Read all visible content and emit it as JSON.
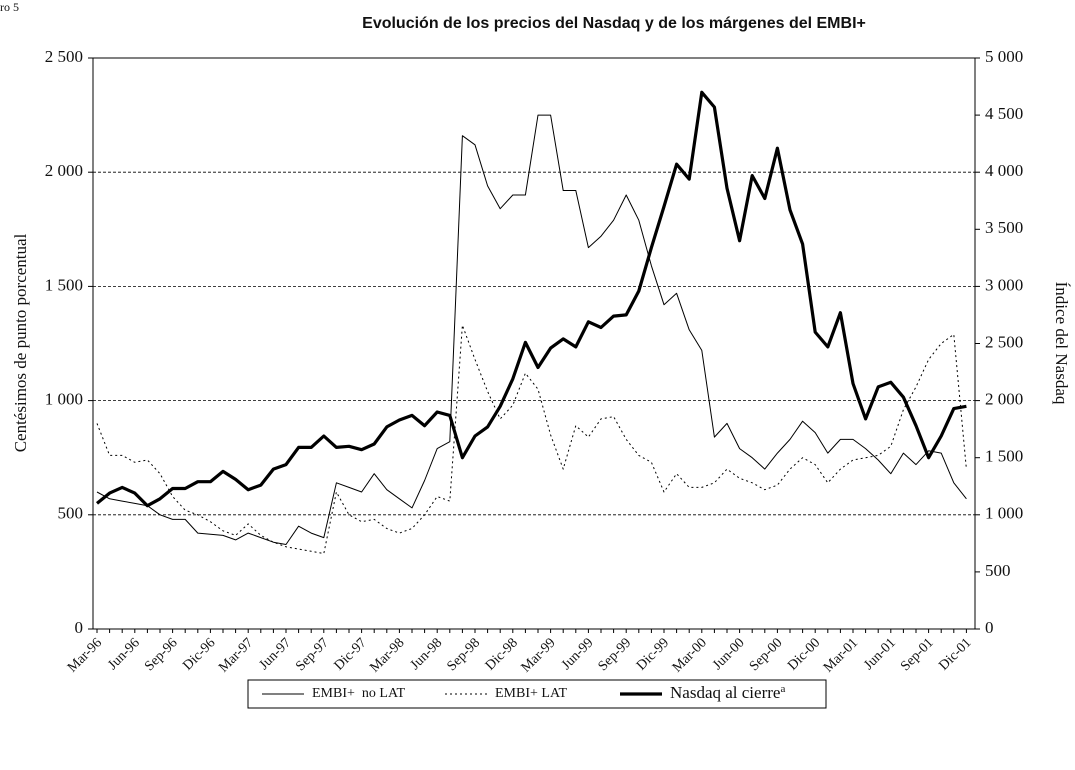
{
  "chart_data": {
    "type": "line",
    "corner_note": "ro 5",
    "title": "Evolución de los precios del Nasdaq y de los márgenes del EMBI+",
    "y_label": "Centésimos de punto porcentual",
    "y2_label": "Índice del Nasdaq",
    "categories": [
      "Mar-96",
      null,
      null,
      "Jun-96",
      null,
      null,
      "Sep-96",
      null,
      null,
      "Dic-96",
      null,
      null,
      "Mar-97",
      null,
      null,
      "Jun-97",
      null,
      null,
      "Sep-97",
      null,
      null,
      "Dic-97",
      null,
      null,
      "Mar-98",
      null,
      null,
      "Jun-98",
      null,
      null,
      "Sep-98",
      null,
      null,
      "Dic-98",
      null,
      null,
      "Mar-99",
      null,
      null,
      "Jun-99",
      null,
      null,
      "Sep-99",
      null,
      null,
      "Dic-99",
      null,
      null,
      "Mar-00",
      null,
      null,
      "Jun-00",
      null,
      null,
      "Sep-00",
      null,
      null,
      "Dic-00",
      null,
      null,
      "Mar-01",
      null,
      null,
      "Jun-01",
      null,
      null,
      "Sep-01",
      null,
      null,
      "Dic-01"
    ],
    "series": [
      {
        "name": "EMBI+  no LAT",
        "color": "#000000",
        "width": 1,
        "dash": "none",
        "axis": "y",
        "values": [
          600,
          570,
          560,
          550,
          540,
          500,
          480,
          480,
          420,
          415,
          410,
          390,
          420,
          400,
          380,
          370,
          450,
          420,
          400,
          640,
          620,
          600,
          680,
          610,
          570,
          530,
          650,
          790,
          820,
          2160,
          2120,
          1940,
          1840,
          1900,
          1900,
          2250,
          2250,
          1920,
          1920,
          1670,
          1720,
          1790,
          1900,
          1790,
          1590,
          1420,
          1470,
          1310,
          1220,
          840,
          900,
          790,
          750,
          700,
          770,
          830,
          910,
          860,
          770,
          830,
          830,
          790,
          740,
          680,
          770,
          720,
          780,
          770,
          640,
          570
        ]
      },
      {
        "name": "EMBI+ LAT",
        "color": "#000000",
        "width": 1,
        "dash": "2 3",
        "axis": "y",
        "values": [
          900,
          760,
          760,
          730,
          740,
          680,
          580,
          520,
          500,
          470,
          430,
          410,
          460,
          410,
          380,
          360,
          350,
          340,
          330,
          600,
          500,
          470,
          480,
          440,
          420,
          440,
          500,
          580,
          560,
          1330,
          1180,
          1040,
          920,
          980,
          1120,
          1050,
          850,
          700,
          890,
          840,
          920,
          930,
          830,
          760,
          730,
          600,
          680,
          620,
          620,
          640,
          700,
          660,
          640,
          610,
          630,
          700,
          750,
          720,
          640,
          700,
          740,
          750,
          760,
          800,
          960,
          1060,
          1180,
          1250,
          1290,
          700
        ]
      },
      {
        "name": "Nasdaq al cierre",
        "color": "#000000",
        "width": 3.2,
        "dash": "none",
        "axis": "y2",
        "values": [
          1100,
          1190,
          1240,
          1190,
          1080,
          1140,
          1230,
          1230,
          1290,
          1290,
          1380,
          1310,
          1220,
          1260,
          1400,
          1440,
          1590,
          1590,
          1690,
          1590,
          1600,
          1570,
          1620,
          1770,
          1830,
          1870,
          1780,
          1900,
          1870,
          1500,
          1690,
          1770,
          1950,
          2190,
          2510,
          2290,
          2460,
          2540,
          2470,
          2690,
          2640,
          2740,
          2750,
          2960,
          3340,
          3700,
          4070,
          3940,
          4700,
          4570,
          3860,
          3400,
          3970,
          3770,
          4210,
          3670,
          3370,
          2600,
          2470,
          2770,
          2150,
          1840,
          2120,
          2160,
          2030,
          1780,
          1500,
          1690,
          1930,
          1950
        ]
      }
    ],
    "legend_footnote": "a",
    "ylim": [
      0,
      2500
    ],
    "yticks": [
      0,
      500,
      {
        "value": 1000,
        "label": "1 000"
      },
      {
        "value": 1500,
        "label": "1 500"
      },
      {
        "value": 2000,
        "label": "2 000"
      },
      {
        "value": 2500,
        "label": "2 500"
      }
    ],
    "y2lim": [
      0,
      5000
    ],
    "y2ticks": [
      0,
      500,
      {
        "value": 1000,
        "label": "1 000"
      },
      {
        "value": 1500,
        "label": "1 500"
      },
      {
        "value": 2000,
        "label": "2 000"
      },
      {
        "value": 2500,
        "label": "2 500"
      },
      {
        "value": 3000,
        "label": "3 000"
      },
      {
        "value": 3500,
        "label": "3 500"
      },
      {
        "value": 4000,
        "label": "4 000"
      },
      {
        "value": 4500,
        "label": "4 500"
      },
      {
        "value": 5000,
        "label": "5 000"
      }
    ],
    "grid": true,
    "legend": "bottom"
  }
}
